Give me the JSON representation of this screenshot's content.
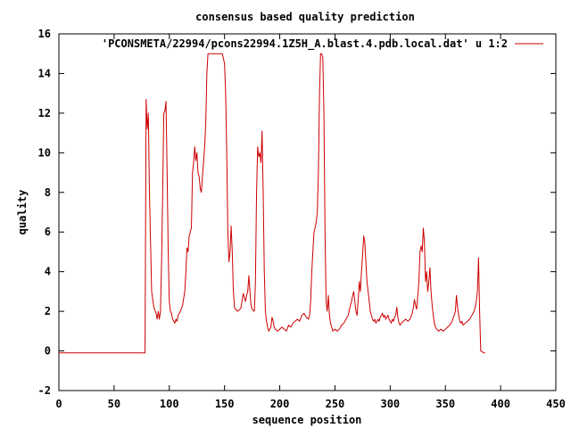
{
  "chart_data": {
    "type": "line",
    "title": "consensus based quality prediction",
    "xlabel": "sequence position",
    "ylabel": "quality",
    "xlim": [
      0,
      450
    ],
    "ylim": [
      -2,
      16
    ],
    "xticks": [
      0,
      50,
      100,
      150,
      200,
      250,
      300,
      350,
      400,
      450
    ],
    "yticks": [
      -2,
      0,
      2,
      4,
      6,
      8,
      10,
      12,
      14,
      16
    ],
    "legend_position": "top-right",
    "grid": false,
    "series": [
      {
        "name": "'PCONSMETA/22994/pcons22994.1Z5H_A.blast.4.pdb.local.dat' u 1:2",
        "color": "#cc0000",
        "points": [
          [
            0,
            -0.1
          ],
          [
            78,
            -0.1
          ],
          [
            79,
            12.7
          ],
          [
            80,
            11.2
          ],
          [
            81,
            12.0
          ],
          [
            82,
            8.0
          ],
          [
            84,
            3.0
          ],
          [
            86,
            2.2
          ],
          [
            88,
            1.9
          ],
          [
            89,
            1.6
          ],
          [
            90,
            2.0
          ],
          [
            91,
            1.6
          ],
          [
            92,
            2.0
          ],
          [
            93,
            4.5
          ],
          [
            94,
            8.0
          ],
          [
            95,
            12.0
          ],
          [
            96,
            12.1
          ],
          [
            97,
            12.6
          ],
          [
            98,
            9.0
          ],
          [
            99,
            5.0
          ],
          [
            100,
            2.5
          ],
          [
            101,
            2.0
          ],
          [
            102,
            1.9
          ],
          [
            103,
            1.6
          ],
          [
            104,
            1.5
          ],
          [
            105,
            1.4
          ],
          [
            106,
            1.6
          ],
          [
            107,
            1.5
          ],
          [
            108,
            1.8
          ],
          [
            110,
            2.0
          ],
          [
            112,
            2.3
          ],
          [
            114,
            3.0
          ],
          [
            115,
            4.0
          ],
          [
            116,
            5.2
          ],
          [
            117,
            5.0
          ],
          [
            118,
            5.8
          ],
          [
            119,
            6.0
          ],
          [
            120,
            6.2
          ],
          [
            121,
            9.0
          ],
          [
            122,
            9.5
          ],
          [
            123,
            10.3
          ],
          [
            124,
            9.6
          ],
          [
            125,
            10.0
          ],
          [
            126,
            9.0
          ],
          [
            127,
            8.8
          ],
          [
            128,
            8.2
          ],
          [
            129,
            8.0
          ],
          [
            130,
            8.8
          ],
          [
            131,
            9.5
          ],
          [
            132,
            10.3
          ],
          [
            133,
            11.5
          ],
          [
            134,
            14.0
          ],
          [
            135,
            15.0
          ],
          [
            140,
            15.0
          ],
          [
            144,
            15.0
          ],
          [
            148,
            15.0
          ],
          [
            150,
            14.5
          ],
          [
            151,
            13.0
          ],
          [
            152,
            10.0
          ],
          [
            153,
            6.0
          ],
          [
            154,
            4.5
          ],
          [
            155,
            5.0
          ],
          [
            156,
            6.3
          ],
          [
            157,
            5.0
          ],
          [
            158,
            3.0
          ],
          [
            159,
            2.2
          ],
          [
            160,
            2.1
          ],
          [
            162,
            2.0
          ],
          [
            164,
            2.1
          ],
          [
            165,
            2.2
          ],
          [
            166,
            2.6
          ],
          [
            167,
            2.9
          ],
          [
            168,
            2.7
          ],
          [
            169,
            2.5
          ],
          [
            170,
            2.8
          ],
          [
            171,
            3.0
          ],
          [
            172,
            3.8
          ],
          [
            173,
            3.0
          ],
          [
            174,
            2.3
          ],
          [
            175,
            2.1
          ],
          [
            177,
            2.0
          ],
          [
            178,
            3.5
          ],
          [
            179,
            8.0
          ],
          [
            180,
            10.3
          ],
          [
            181,
            9.8
          ],
          [
            182,
            10.0
          ],
          [
            183,
            9.5
          ],
          [
            184,
            11.1
          ],
          [
            185,
            8.0
          ],
          [
            186,
            4.0
          ],
          [
            187,
            2.0
          ],
          [
            188,
            1.5
          ],
          [
            189,
            1.2
          ],
          [
            190,
            1.0
          ],
          [
            191,
            1.1
          ],
          [
            192,
            1.2
          ],
          [
            193,
            1.7
          ],
          [
            194,
            1.5
          ],
          [
            195,
            1.2
          ],
          [
            196,
            1.1
          ],
          [
            198,
            1.0
          ],
          [
            200,
            1.1
          ],
          [
            202,
            1.2
          ],
          [
            204,
            1.1
          ],
          [
            206,
            1.0
          ],
          [
            208,
            1.3
          ],
          [
            210,
            1.2
          ],
          [
            212,
            1.4
          ],
          [
            214,
            1.5
          ],
          [
            216,
            1.6
          ],
          [
            218,
            1.5
          ],
          [
            220,
            1.8
          ],
          [
            222,
            1.9
          ],
          [
            224,
            1.7
          ],
          [
            226,
            1.6
          ],
          [
            227,
            1.8
          ],
          [
            228,
            2.5
          ],
          [
            229,
            4.0
          ],
          [
            230,
            5.0
          ],
          [
            231,
            6.0
          ],
          [
            232,
            6.2
          ],
          [
            233,
            6.5
          ],
          [
            234,
            7.0
          ],
          [
            235,
            9.0
          ],
          [
            236,
            13.0
          ],
          [
            237,
            15.0
          ],
          [
            238,
            15.0
          ],
          [
            239,
            14.8
          ],
          [
            240,
            12.0
          ],
          [
            241,
            6.0
          ],
          [
            242,
            2.5
          ],
          [
            243,
            2.0
          ],
          [
            244,
            2.8
          ],
          [
            245,
            1.8
          ],
          [
            246,
            1.4
          ],
          [
            247,
            1.2
          ],
          [
            248,
            1.0
          ],
          [
            250,
            1.1
          ],
          [
            252,
            1.0
          ],
          [
            254,
            1.1
          ],
          [
            256,
            1.3
          ],
          [
            258,
            1.4
          ],
          [
            260,
            1.6
          ],
          [
            262,
            1.8
          ],
          [
            264,
            2.3
          ],
          [
            265,
            2.5
          ],
          [
            266,
            2.8
          ],
          [
            267,
            3.0
          ],
          [
            268,
            2.5
          ],
          [
            269,
            2.0
          ],
          [
            270,
            1.8
          ],
          [
            271,
            2.5
          ],
          [
            272,
            3.5
          ],
          [
            273,
            3.0
          ],
          [
            274,
            4.0
          ],
          [
            275,
            4.8
          ],
          [
            276,
            5.8
          ],
          [
            277,
            5.5
          ],
          [
            278,
            4.5
          ],
          [
            279,
            3.5
          ],
          [
            280,
            3.0
          ],
          [
            281,
            2.5
          ],
          [
            282,
            2.0
          ],
          [
            283,
            1.8
          ],
          [
            284,
            1.6
          ],
          [
            285,
            1.5
          ],
          [
            286,
            1.6
          ],
          [
            287,
            1.4
          ],
          [
            288,
            1.5
          ],
          [
            289,
            1.6
          ],
          [
            290,
            1.5
          ],
          [
            291,
            1.7
          ],
          [
            292,
            1.8
          ],
          [
            293,
            1.9
          ],
          [
            294,
            1.7
          ],
          [
            295,
            1.8
          ],
          [
            296,
            1.6
          ],
          [
            297,
            1.7
          ],
          [
            298,
            1.8
          ],
          [
            299,
            1.6
          ],
          [
            300,
            1.5
          ],
          [
            301,
            1.4
          ],
          [
            302,
            1.6
          ],
          [
            303,
            1.5
          ],
          [
            304,
            1.7
          ],
          [
            305,
            1.8
          ],
          [
            306,
            2.2
          ],
          [
            307,
            1.7
          ],
          [
            308,
            1.4
          ],
          [
            309,
            1.3
          ],
          [
            310,
            1.4
          ],
          [
            312,
            1.5
          ],
          [
            314,
            1.6
          ],
          [
            316,
            1.5
          ],
          [
            318,
            1.6
          ],
          [
            320,
            1.9
          ],
          [
            321,
            2.2
          ],
          [
            322,
            2.6
          ],
          [
            323,
            2.3
          ],
          [
            324,
            2.1
          ],
          [
            325,
            2.8
          ],
          [
            326,
            3.5
          ],
          [
            327,
            5.0
          ],
          [
            328,
            5.3
          ],
          [
            329,
            5.0
          ],
          [
            330,
            6.2
          ],
          [
            331,
            5.5
          ],
          [
            332,
            3.5
          ],
          [
            333,
            4.0
          ],
          [
            334,
            3.0
          ],
          [
            335,
            3.5
          ],
          [
            336,
            4.2
          ],
          [
            337,
            3.0
          ],
          [
            338,
            2.3
          ],
          [
            339,
            1.8
          ],
          [
            340,
            1.4
          ],
          [
            341,
            1.2
          ],
          [
            342,
            1.1
          ],
          [
            344,
            1.0
          ],
          [
            346,
            1.1
          ],
          [
            348,
            1.0
          ],
          [
            350,
            1.1
          ],
          [
            352,
            1.2
          ],
          [
            354,
            1.3
          ],
          [
            356,
            1.5
          ],
          [
            358,
            1.8
          ],
          [
            359,
            2.0
          ],
          [
            360,
            2.8
          ],
          [
            361,
            2.2
          ],
          [
            362,
            1.8
          ],
          [
            363,
            1.5
          ],
          [
            364,
            1.4
          ],
          [
            365,
            1.5
          ],
          [
            366,
            1.3
          ],
          [
            368,
            1.4
          ],
          [
            370,
            1.5
          ],
          [
            372,
            1.6
          ],
          [
            374,
            1.8
          ],
          [
            376,
            2.0
          ],
          [
            377,
            2.2
          ],
          [
            378,
            2.5
          ],
          [
            379,
            3.0
          ],
          [
            380,
            4.7
          ],
          [
            381,
            2.0
          ],
          [
            382,
            0.0
          ],
          [
            385,
            -0.1
          ],
          [
            386,
            -0.1
          ]
        ]
      }
    ]
  }
}
